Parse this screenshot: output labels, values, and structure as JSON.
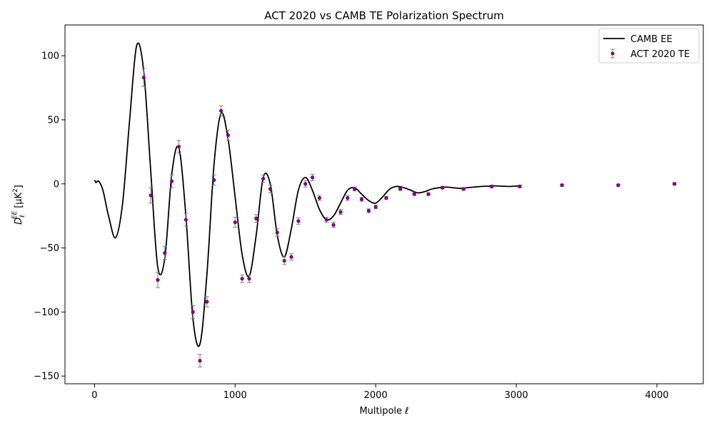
{
  "chart_data": {
    "type": "line",
    "title": "ACT 2020 vs CAMB TE Polarization Spectrum",
    "xlabel": "Multipole ℓ",
    "ylabel": "D",
    "ylabel_sub": "ℓ",
    "ylabel_sup": "EE",
    "ylabel_units": "[μK",
    "ylabel_units_sup": "2",
    "ylabel_units_end": "]",
    "xlim": [
      -210,
      4330
    ],
    "ylim": [
      -156,
      124
    ],
    "xticks": [
      0,
      1000,
      2000,
      3000,
      4000
    ],
    "yticks": [
      -150,
      -100,
      -50,
      0,
      50,
      100
    ],
    "grid": false,
    "legend_position": "top-right",
    "colors": {
      "model": "#000000",
      "data": "#800080",
      "errorbar": "#808080"
    },
    "series": [
      {
        "name": "CAMB EE",
        "kind": "line",
        "x": [
          2,
          10,
          30,
          60,
          100,
          150,
          200,
          250,
          300,
          350,
          400,
          450,
          500,
          550,
          600,
          650,
          700,
          750,
          800,
          850,
          900,
          950,
          1000,
          1050,
          1100,
          1150,
          1200,
          1250,
          1300,
          1350,
          1400,
          1450,
          1500,
          1550,
          1600,
          1650,
          1700,
          1750,
          1800,
          1850,
          1900,
          1950,
          2000,
          2050,
          2100,
          2150,
          2200,
          2250,
          2300,
          2350,
          2400,
          2450,
          2500,
          2550,
          2600,
          2650,
          2700,
          2750,
          2800,
          2850,
          2900,
          2950,
          3000,
          3030
        ],
        "y": [
          3,
          1,
          2,
          -5,
          -25,
          -42,
          -15,
          50,
          108,
          88,
          10,
          -65,
          -58,
          8,
          28,
          -25,
          -105,
          -125,
          -70,
          15,
          55,
          35,
          -10,
          -55,
          -72,
          -40,
          5,
          0,
          -40,
          -57,
          -35,
          -5,
          5,
          -5,
          -20,
          -28,
          -25,
          -15,
          -5,
          -3,
          -8,
          -13,
          -15,
          -10,
          -4,
          -2,
          -3,
          -5,
          -7,
          -6,
          -4,
          -3,
          -2.5,
          -3,
          -3.5,
          -3,
          -2.5,
          -2,
          -1.8,
          -1.6,
          -1.8,
          -2,
          -1.7,
          -1.5
        ]
      },
      {
        "name": "ACT 2020 TE",
        "kind": "errorbar",
        "x": [
          350,
          400,
          450,
          500,
          550,
          600,
          650,
          700,
          750,
          800,
          850,
          900,
          950,
          1000,
          1050,
          1100,
          1150,
          1200,
          1250,
          1300,
          1350,
          1400,
          1450,
          1500,
          1550,
          1600,
          1650,
          1700,
          1750,
          1800,
          1850,
          1900,
          1950,
          2000,
          2075,
          2175,
          2275,
          2375,
          2475,
          2625,
          2825,
          3025,
          3325,
          3725,
          4125
        ],
        "y": [
          83,
          -9,
          -75,
          -54,
          2,
          29,
          -28,
          -100,
          -138,
          -92,
          3,
          57,
          38,
          -30,
          -74,
          -74,
          -27,
          4,
          -4,
          -38,
          -60,
          -57,
          -29,
          0,
          5,
          -11,
          -28,
          -32,
          -22,
          -11,
          -4,
          -12,
          -21,
          -18,
          -11,
          -4,
          -8,
          -8,
          -3,
          -4,
          -2,
          -2,
          -1,
          -1,
          0
        ],
        "err": [
          7,
          6,
          6,
          5,
          5,
          5,
          5,
          5,
          5,
          4,
          4,
          4,
          4,
          4,
          3,
          3,
          3,
          3,
          3,
          3,
          3,
          2.5,
          2.5,
          2.5,
          2.5,
          2,
          2,
          2,
          2,
          2,
          1.5,
          1.5,
          1.5,
          1.5,
          1,
          1,
          1,
          1,
          1,
          1,
          1,
          1,
          0.8,
          0.8,
          0.8
        ]
      }
    ]
  }
}
